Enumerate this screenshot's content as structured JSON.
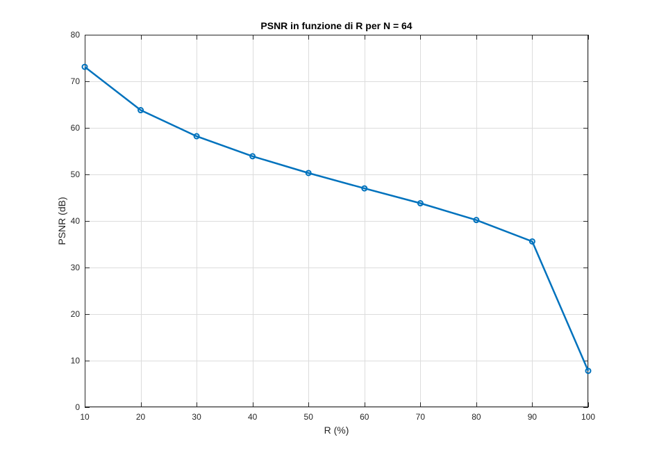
{
  "chart_data": {
    "type": "line",
    "title": "PSNR in funzione di R per N = 64",
    "xlabel": "R (%)",
    "ylabel": "PSNR (dB)",
    "xlim": [
      10,
      100
    ],
    "ylim": [
      0,
      80
    ],
    "xticks": [
      10,
      20,
      30,
      40,
      50,
      60,
      70,
      80,
      90,
      100
    ],
    "yticks": [
      0,
      10,
      20,
      30,
      40,
      50,
      60,
      70,
      80
    ],
    "grid": true,
    "marker": "circle",
    "series": [
      {
        "x": [
          10,
          20,
          30,
          40,
          50,
          60,
          70,
          80,
          90,
          100
        ],
        "y": [
          73.1,
          63.8,
          58.2,
          53.9,
          50.3,
          47.0,
          43.8,
          40.2,
          35.6,
          7.8
        ],
        "color": "#0072BD"
      }
    ]
  }
}
